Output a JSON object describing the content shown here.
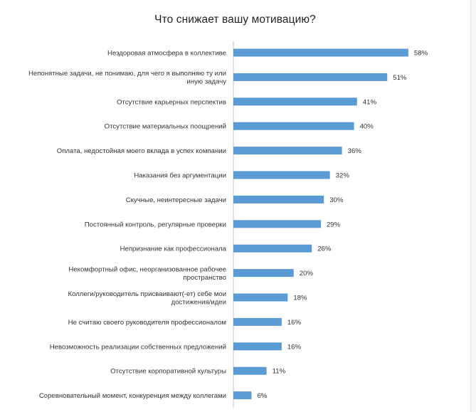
{
  "chart_data": {
    "type": "bar",
    "orientation": "horizontal",
    "title": "Что снижает вашу мотивацию?",
    "bar_color": "#5b9bd5",
    "value_suffix": "%",
    "xlim": [
      0,
      60
    ],
    "grid": false,
    "legend": "none",
    "categories": [
      [
        "Нездоровая атмосфера в коллективе"
      ],
      [
        "Непонятные задачи, не понимаю, для чего я выполняю ту или",
        "иную задачу"
      ],
      [
        "Отсутствие карьерных перспектив"
      ],
      [
        "Отсутствие материальных поощрений"
      ],
      [
        "Оплата, недостойная моего вклада в успех компании"
      ],
      [
        "Наказания без аргументации"
      ],
      [
        "Скучные, неинтересные задачи"
      ],
      [
        "Постоянный контроль, регулярные проверки"
      ],
      [
        "Непризнание как профессионала"
      ],
      [
        "Некомфортный офис, неорганизованное рабочее",
        "пространство"
      ],
      [
        "Коллеги/руководитель присваивают(-ет) себе мои",
        "достижения/идеи"
      ],
      [
        "Не считаю своего руководителя профессионалом"
      ],
      [
        "Невозможность реализации собственных предложений"
      ],
      [
        "Отсутствие корпоративной культуры"
      ],
      [
        "Соревновательный момент, конкуренция между коллегами"
      ]
    ],
    "values": [
      58,
      51,
      41,
      40,
      36,
      32,
      30,
      29,
      26,
      20,
      18,
      16,
      16,
      11,
      6
    ]
  }
}
